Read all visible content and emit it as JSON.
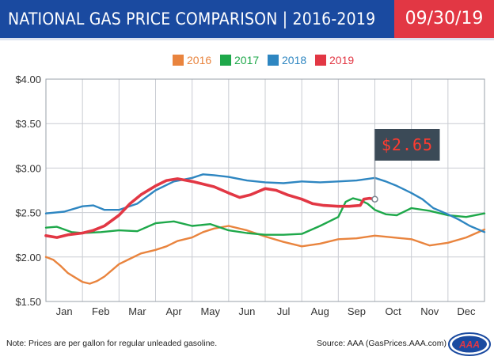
{
  "header": {
    "title": "NATIONAL GAS PRICE COMPARISON | 2016-2019",
    "date": "09/30/19"
  },
  "footer": {
    "note": "Note: Prices are per gallon for regular unleaded gasoline.",
    "source": "Source: AAA (GasPrices.AAA.com)",
    "logo_text": "AAA"
  },
  "colors": {
    "header_blue": "#1a4aa0",
    "date_red": "#e23744",
    "series_2016": "#e9843e",
    "series_2017": "#1ea84a",
    "series_2018": "#2e86c1",
    "series_2019": "#e23744"
  },
  "chart_data": {
    "type": "line",
    "title": "",
    "xlabel": "",
    "ylabel": "",
    "x_unit": "month (1 = Jan)",
    "x_range": [
      1,
      13
    ],
    "categories": [
      "Jan",
      "Feb",
      "Mar",
      "Apr",
      "May",
      "Jun",
      "Jul",
      "Aug",
      "Sep",
      "Oct",
      "Nov",
      "Dec"
    ],
    "ylim": [
      1.5,
      4.0
    ],
    "yticks": [
      1.5,
      2.0,
      2.5,
      3.0,
      3.5,
      4.0
    ],
    "ytick_labels": [
      "$1.50",
      "$2.00",
      "$2.50",
      "$3.00",
      "$3.50",
      "$4.00"
    ],
    "grid": true,
    "legend_position": "top-center",
    "callout": {
      "label": "$2.65",
      "series": "2019",
      "x": 10.0,
      "y": 2.65
    },
    "series": [
      {
        "name": "2016",
        "color": "#e9843e",
        "x": [
          1.0,
          1.2,
          1.4,
          1.6,
          1.8,
          2.0,
          2.2,
          2.4,
          2.6,
          2.8,
          3.0,
          3.3,
          3.6,
          4.0,
          4.3,
          4.6,
          5.0,
          5.3,
          5.6,
          6.0,
          6.5,
          7.0,
          7.5,
          8.0,
          8.5,
          9.0,
          9.5,
          10.0,
          10.5,
          11.0,
          11.5,
          12.0,
          12.5,
          13.0
        ],
        "y": [
          2.0,
          1.97,
          1.9,
          1.82,
          1.77,
          1.72,
          1.7,
          1.73,
          1.78,
          1.85,
          1.92,
          1.98,
          2.04,
          2.08,
          2.12,
          2.18,
          2.22,
          2.28,
          2.32,
          2.35,
          2.3,
          2.23,
          2.17,
          2.12,
          2.15,
          2.2,
          2.21,
          2.24,
          2.22,
          2.2,
          2.13,
          2.16,
          2.22,
          2.31
        ]
      },
      {
        "name": "2017",
        "color": "#1ea84a",
        "x": [
          1.0,
          1.3,
          1.7,
          2.0,
          2.5,
          3.0,
          3.5,
          4.0,
          4.5,
          5.0,
          5.5,
          6.0,
          6.5,
          7.0,
          7.5,
          8.0,
          8.5,
          9.0,
          9.2,
          9.4,
          9.6,
          9.8,
          10.0,
          10.3,
          10.6,
          11.0,
          11.5,
          12.0,
          12.5,
          13.0
        ],
        "y": [
          2.33,
          2.34,
          2.28,
          2.27,
          2.28,
          2.3,
          2.29,
          2.38,
          2.4,
          2.35,
          2.37,
          2.3,
          2.27,
          2.25,
          2.25,
          2.26,
          2.35,
          2.45,
          2.62,
          2.66,
          2.64,
          2.6,
          2.53,
          2.48,
          2.47,
          2.55,
          2.52,
          2.47,
          2.45,
          2.49
        ]
      },
      {
        "name": "2018",
        "color": "#2e86c1",
        "x": [
          1.0,
          1.5,
          2.0,
          2.3,
          2.6,
          3.0,
          3.5,
          4.0,
          4.5,
          5.0,
          5.3,
          5.6,
          6.0,
          6.5,
          7.0,
          7.5,
          8.0,
          8.5,
          9.0,
          9.5,
          10.0,
          10.3,
          10.6,
          11.0,
          11.3,
          11.6,
          12.0,
          12.3,
          12.6,
          13.0
        ],
        "y": [
          2.49,
          2.51,
          2.57,
          2.58,
          2.53,
          2.53,
          2.6,
          2.75,
          2.85,
          2.89,
          2.93,
          2.92,
          2.9,
          2.86,
          2.84,
          2.83,
          2.85,
          2.84,
          2.85,
          2.86,
          2.89,
          2.85,
          2.8,
          2.72,
          2.65,
          2.55,
          2.48,
          2.42,
          2.35,
          2.28
        ]
      },
      {
        "name": "2019",
        "color": "#e23744",
        "x": [
          1.0,
          1.3,
          1.6,
          2.0,
          2.3,
          2.6,
          3.0,
          3.3,
          3.6,
          4.0,
          4.3,
          4.6,
          5.0,
          5.3,
          5.6,
          6.0,
          6.3,
          6.6,
          7.0,
          7.3,
          7.6,
          8.0,
          8.3,
          8.6,
          9.0,
          9.3,
          9.6,
          9.7,
          9.85,
          10.0
        ],
        "y": [
          2.24,
          2.22,
          2.25,
          2.27,
          2.3,
          2.35,
          2.47,
          2.6,
          2.7,
          2.8,
          2.86,
          2.88,
          2.85,
          2.82,
          2.79,
          2.72,
          2.67,
          2.7,
          2.77,
          2.75,
          2.7,
          2.65,
          2.6,
          2.58,
          2.57,
          2.57,
          2.58,
          2.65,
          2.66,
          2.65
        ]
      }
    ]
  }
}
